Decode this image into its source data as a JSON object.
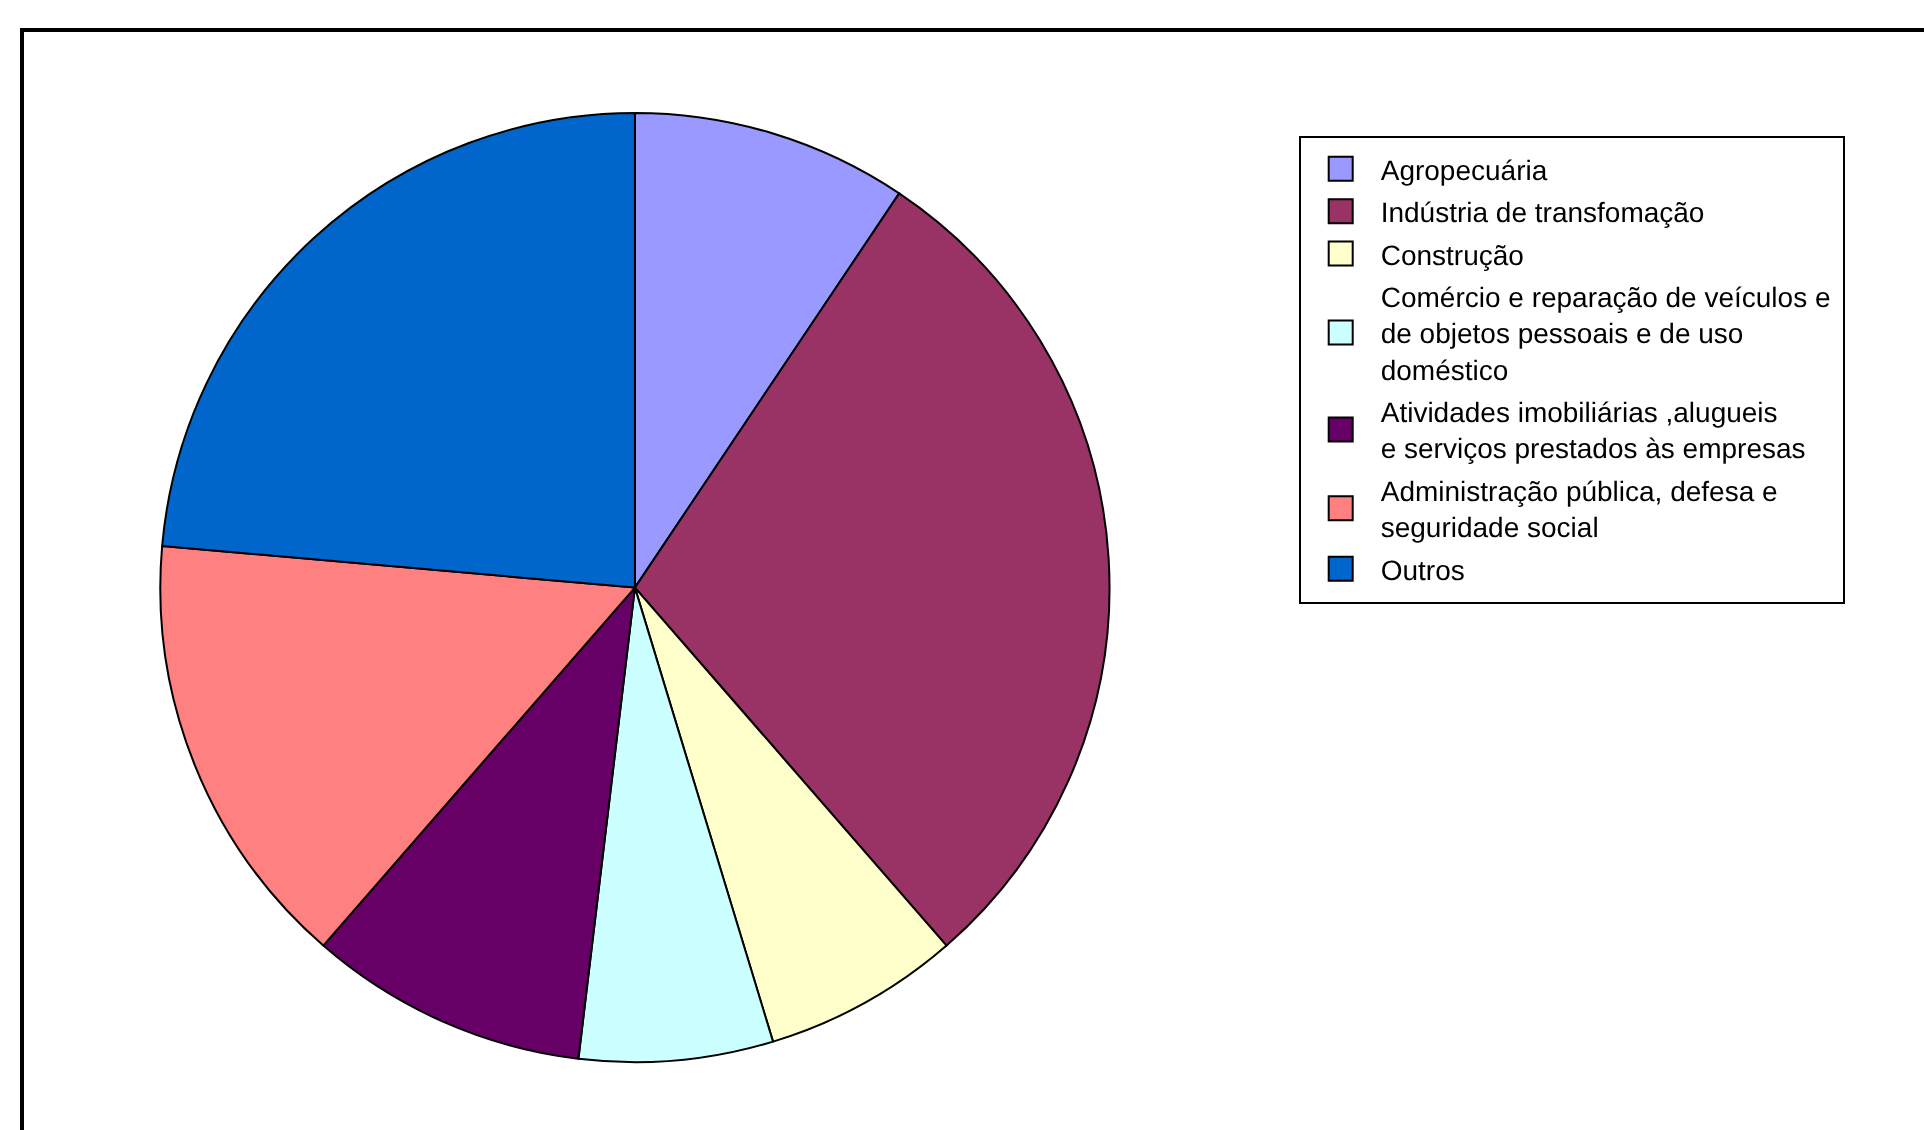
{
  "chart_data": {
    "type": "pie",
    "categories": [
      "Agropecuária",
      "Indústria de transfomação",
      "Construção",
      "Comércio e reparação de veículos e de objetos pessoais e de uso doméstico",
      "Atividades imobiliárias ,alugueis e serviços prestados às empresas",
      "Administração pública, defesa e seguridade social",
      "Outros"
    ],
    "values": [
      9.4,
      29.2,
      6.7,
      6.6,
      9.5,
      15.0,
      23.6
    ],
    "colors": [
      "#9999ff",
      "#993366",
      "#ffffcc",
      "#ccffff",
      "#660066",
      "#ff8080",
      "#0066cc"
    ],
    "legend": "right"
  }
}
